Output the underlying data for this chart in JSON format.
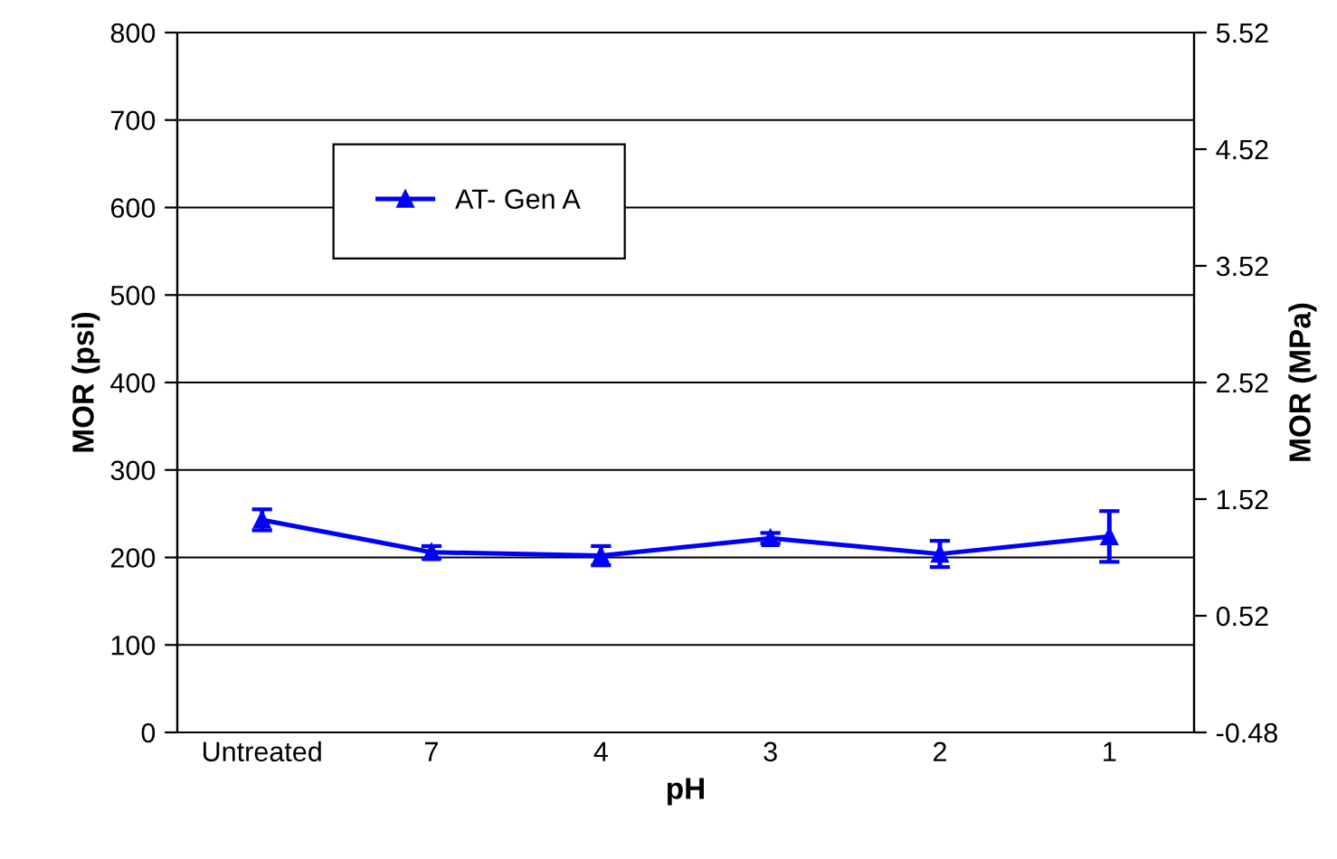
{
  "chart_data": {
    "type": "line",
    "xlabel": "pH",
    "ylabel": "MOR (psi)",
    "y2label": "MOR (MPa)",
    "categories": [
      "Untreated",
      "7",
      "4",
      "3",
      "2",
      "1"
    ],
    "series": [
      {
        "name": "AT- Gen A",
        "color": "#0000ff",
        "values": [
          243,
          206,
          202,
          222,
          204,
          224
        ],
        "errors": [
          12,
          7,
          11,
          6,
          15,
          29
        ]
      }
    ],
    "ylim": [
      0,
      800
    ],
    "yticks": [
      0,
      100,
      200,
      300,
      400,
      500,
      600,
      700,
      800
    ],
    "y2lim": [
      -0.48,
      5.52
    ],
    "y2ticks": [
      -0.48,
      0.52,
      1.52,
      2.52,
      3.52,
      4.52,
      5.52
    ],
    "grid": "y",
    "legend": "top left",
    "marker": "triangle",
    "line_style": "solid"
  }
}
